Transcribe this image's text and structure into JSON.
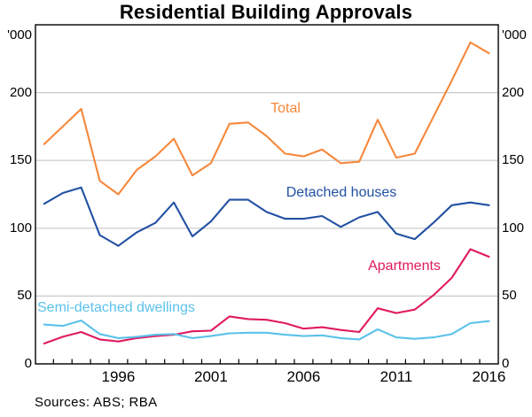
{
  "title": "Residential Building Approvals",
  "axis": {
    "unit_left": "'000",
    "unit_right": "'000",
    "y_ticks": [
      0,
      50,
      100,
      150,
      200
    ],
    "x_labels": [
      "1996",
      "2001",
      "2006",
      "2011",
      "2016"
    ]
  },
  "footer": {
    "sources": "Sources: ABS; RBA"
  },
  "colors": {
    "grid": "#c9c9c9",
    "axis": "#000000"
  },
  "chart_data": {
    "type": "line",
    "title": "Residential Building Approvals",
    "ylabel": "'000",
    "ylim": [
      0,
      250
    ],
    "gridlines": [
      50,
      100,
      150,
      200
    ],
    "x_labeled_years": [
      1996,
      2001,
      2006,
      2011,
      2016
    ],
    "legend_position": "inline-labels",
    "x": [
      1992,
      1993,
      1994,
      1995,
      1996,
      1997,
      1998,
      1999,
      2000,
      2001,
      2002,
      2003,
      2004,
      2005,
      2006,
      2007,
      2008,
      2009,
      2010,
      2011,
      2012,
      2013,
      2014,
      2015,
      2016
    ],
    "series": [
      {
        "name": "Total",
        "color": "#f6883b",
        "values": [
          162,
          175,
          188,
          135,
          125,
          143,
          153,
          166,
          139,
          148,
          177,
          178,
          168,
          155,
          153,
          158,
          148,
          149,
          180,
          152,
          155,
          182,
          209,
          237,
          229
        ]
      },
      {
        "name": "Detached houses",
        "color": "#2251a3",
        "values": [
          118,
          126,
          130,
          95,
          87,
          97,
          104,
          119,
          94,
          105,
          121,
          121,
          112,
          107,
          107,
          109,
          101,
          108,
          112,
          96,
          92,
          104,
          117,
          119,
          117
        ]
      },
      {
        "name": "Apartments",
        "color": "#e01a60",
        "values": [
          15,
          20,
          23.5,
          18,
          16.5,
          19,
          20.5,
          21.5,
          24,
          24.5,
          35,
          33,
          32.5,
          30,
          26,
          27,
          25,
          23.5,
          41,
          37.5,
          40,
          50.5,
          63.5,
          84.5,
          79
        ]
      },
      {
        "name": "Semi-detached dwellings",
        "color": "#5bc2ea",
        "values": [
          29,
          28,
          32,
          22,
          19,
          20,
          21.5,
          22,
          19,
          20.5,
          22.5,
          23,
          23,
          21.5,
          20.5,
          21,
          19,
          18,
          25.5,
          19.5,
          18.5,
          19.5,
          22,
          30,
          31.5
        ]
      }
    ]
  }
}
